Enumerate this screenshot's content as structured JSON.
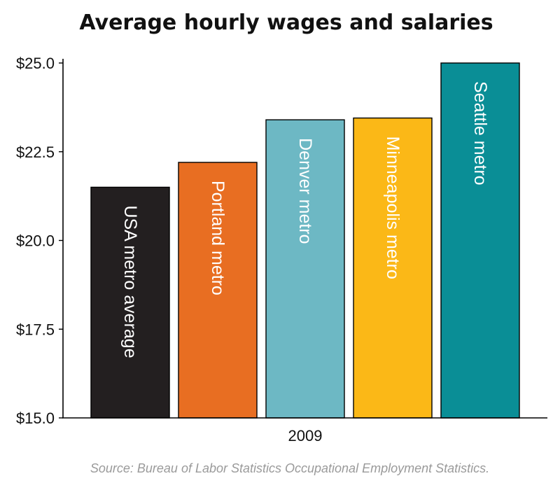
{
  "chart_data": {
    "type": "bar",
    "title": "Average hourly wages and salaries",
    "category_axis_label": "2009",
    "categories": [
      "USA metro average",
      "Portland metro",
      "Denver metro",
      "Minneapolis metro",
      "Seattle metro"
    ],
    "values": [
      21.5,
      22.2,
      23.4,
      23.45,
      25.0
    ],
    "bar_colors": [
      "#231f20",
      "#e86e22",
      "#6db8c4",
      "#fbb817",
      "#0a8e96"
    ],
    "ylim": [
      15,
      25
    ],
    "yticks": [
      15,
      17.5,
      20,
      22.5,
      25
    ],
    "ytick_labels": [
      "$15.0",
      "$17.5",
      "$20.0",
      "$22.5",
      "$25.0"
    ],
    "grid": false,
    "source": "Source: Bureau of Labor Statistics Occupational Employment Statistics."
  }
}
